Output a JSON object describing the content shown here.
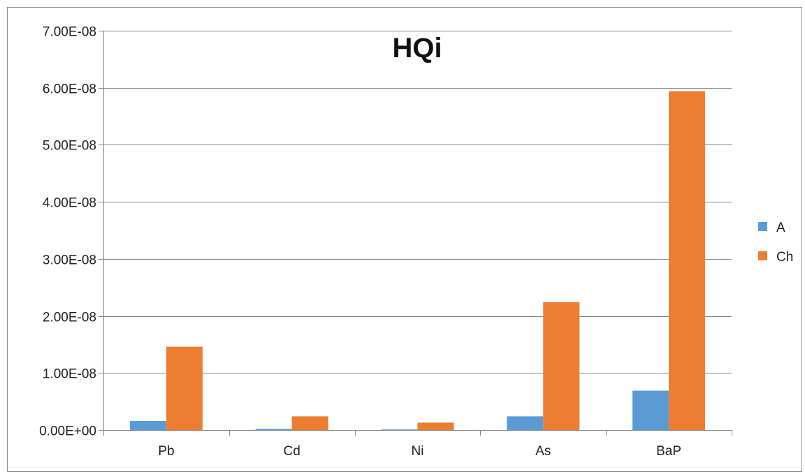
{
  "chart_data": {
    "type": "bar",
    "title": "HQi",
    "xlabel": "",
    "ylabel": "",
    "categories": [
      "Pb",
      "Cd",
      "Ni",
      "As",
      "BaP"
    ],
    "series": [
      {
        "name": "A",
        "color": "#5b9bd5",
        "values": [
          1.6e-09,
          2e-10,
          1e-10,
          2.4e-09,
          6.9e-09
        ]
      },
      {
        "name": "Ch",
        "color": "#ed7d31",
        "values": [
          1.46e-08,
          2.4e-09,
          1.3e-09,
          2.24e-08,
          5.94e-08
        ]
      }
    ],
    "ylim": [
      0,
      7e-08
    ],
    "yticks": [
      {
        "value": 0,
        "label": "0.00E+00"
      },
      {
        "value": 1e-08,
        "label": "1.00E-08"
      },
      {
        "value": 2e-08,
        "label": "2.00E-08"
      },
      {
        "value": 3e-08,
        "label": "3.00E-08"
      },
      {
        "value": 4e-08,
        "label": "4.00E-08"
      },
      {
        "value": 5e-08,
        "label": "5.00E-08"
      },
      {
        "value": 6e-08,
        "label": "6.00E-08"
      },
      {
        "value": 7e-08,
        "label": "7.00E-08"
      }
    ],
    "grid": true,
    "legend_position": "right"
  }
}
